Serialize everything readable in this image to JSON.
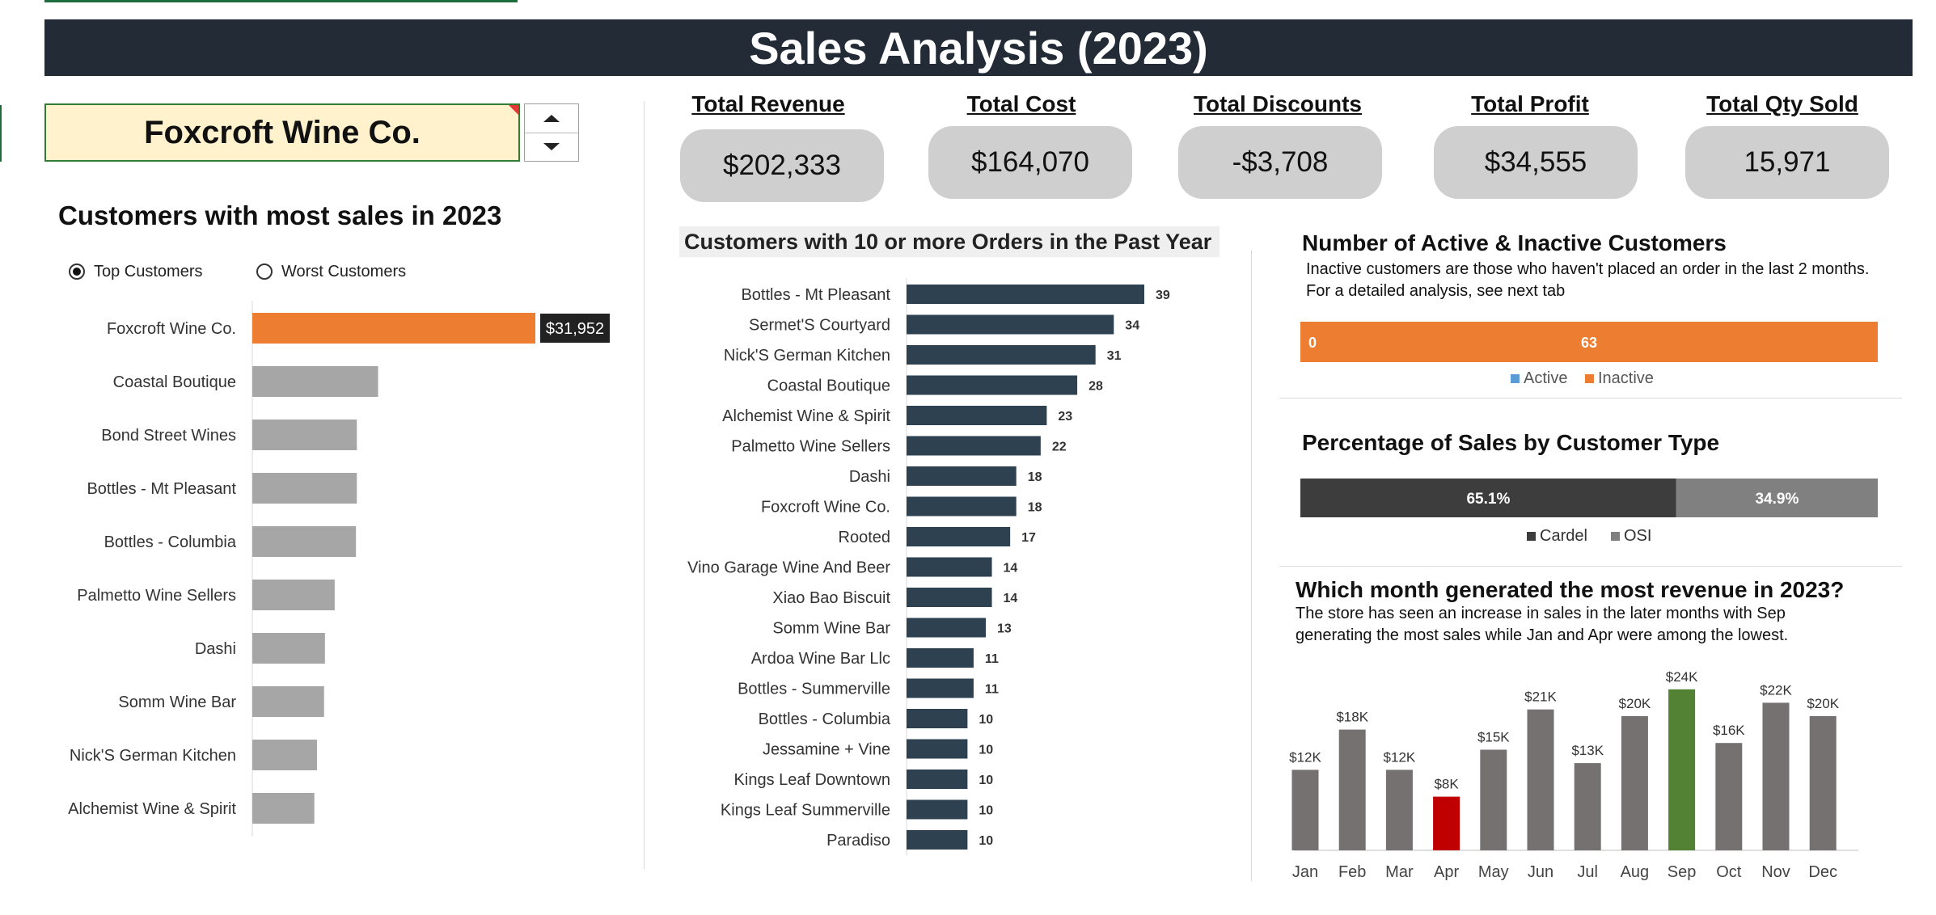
{
  "header": {
    "title": "Sales Analysis (2023)"
  },
  "selector": {
    "value": "Foxcroft Wine Co."
  },
  "kpis": [
    {
      "label": "Total Revenue",
      "value": "$202,333"
    },
    {
      "label": "Total Cost",
      "value": "$164,070"
    },
    {
      "label": "Total Discounts",
      "value": "-$3,708"
    },
    {
      "label": "Total Profit",
      "value": "$34,555"
    },
    {
      "label": "Total Qty Sold",
      "value": "15,971"
    }
  ],
  "top_customers": {
    "title": "Customers with most sales in 2023",
    "options": [
      "Top Customers",
      "Worst Customers"
    ],
    "selected_option": "Top Customers"
  },
  "orders_panel": {
    "title": "Customers with 10 or more Orders in the Past Year"
  },
  "active_panel": {
    "title": "Number of Active & Inactive Customers",
    "note": "Inactive customers are those who haven't placed an order in the last 2 months. For a detailed analysis, see next tab"
  },
  "type_panel": {
    "title": "Percentage of Sales by Customer Type"
  },
  "month_panel": {
    "title": "Which month generated the most revenue in 2023?",
    "note": "The store has seen an increase in sales in the later months with Sep generating the most sales while Jan and Apr were among the lowest."
  },
  "colors": {
    "banner": "#222b36",
    "highlight": "#ed7d31",
    "bar_gray": "#a6a6a6",
    "bar_navy": "#2e4150",
    "active": "#5b9bd5",
    "inactive": "#ed7d31",
    "cardel": "#3d3d3d",
    "osi": "#808080",
    "month_bar": "#767171",
    "month_max": "#548235",
    "month_min": "#c00000"
  },
  "chart_data": [
    {
      "id": "top-customers",
      "type": "bar",
      "orientation": "horizontal",
      "categories": [
        "Foxcroft Wine Co.",
        "Coastal Boutique",
        "Bond Street Wines",
        "Bottles - Mt Pleasant",
        "Bottles - Columbia",
        "Palmetto Wine Sellers",
        "Dashi",
        "Somm Wine Bar",
        "Nick'S German Kitchen",
        "Alchemist Wine & Spirit"
      ],
      "values": [
        31952,
        14200,
        11800,
        11800,
        11700,
        9300,
        8200,
        8100,
        7300,
        7000
      ],
      "highlight": "Foxcroft Wine Co.",
      "data_labels": {
        "Foxcroft Wine Co.": "$31,952"
      }
    },
    {
      "id": "orders-10plus",
      "type": "bar",
      "orientation": "horizontal",
      "categories": [
        "Bottles - Mt Pleasant",
        "Sermet'S Courtyard",
        "Nick'S German Kitchen",
        "Coastal Boutique",
        "Alchemist Wine & Spirit",
        "Palmetto Wine Sellers",
        "Dashi",
        "Foxcroft Wine Co.",
        "Rooted",
        "Vino Garage Wine And Beer",
        "Xiao Bao Biscuit",
        "Somm Wine Bar",
        "Ardoa Wine Bar Llc",
        "Bottles - Summerville",
        "Bottles - Columbia",
        "Jessamine + Vine",
        "Kings Leaf Downtown",
        "Kings Leaf Summerville",
        "Paradiso"
      ],
      "values": [
        39,
        34,
        31,
        28,
        23,
        22,
        18,
        18,
        17,
        14,
        14,
        13,
        11,
        11,
        10,
        10,
        10,
        10,
        10
      ]
    },
    {
      "id": "active-inactive",
      "type": "bar",
      "orientation": "horizontal",
      "stacked": true,
      "series": [
        {
          "name": "Active",
          "values": [
            0
          ]
        },
        {
          "name": "Inactive",
          "values": [
            63
          ]
        }
      ],
      "legend": "bottom"
    },
    {
      "id": "customer-type",
      "type": "bar",
      "orientation": "horizontal",
      "stacked": true,
      "percent": true,
      "series": [
        {
          "name": "Cardel",
          "values": [
            65.1
          ],
          "label": "65.1%"
        },
        {
          "name": "OSI",
          "values": [
            34.9
          ],
          "label": "34.9%"
        }
      ],
      "legend": "bottom"
    },
    {
      "id": "monthly-revenue",
      "type": "bar",
      "categories": [
        "Jan",
        "Feb",
        "Mar",
        "Apr",
        "May",
        "Jun",
        "Jul",
        "Aug",
        "Sep",
        "Oct",
        "Nov",
        "Dec"
      ],
      "values": [
        12,
        18,
        12,
        8,
        15,
        21,
        13,
        20,
        24,
        16,
        22,
        20
      ],
      "labels": [
        "$12K",
        "$18K",
        "$12K",
        "$8K",
        "$15K",
        "$21K",
        "$13K",
        "$20K",
        "$24K",
        "$16K",
        "$22K",
        "$20K"
      ],
      "unit": "$K",
      "highlight_max": "Sep",
      "highlight_min": "Apr"
    }
  ]
}
